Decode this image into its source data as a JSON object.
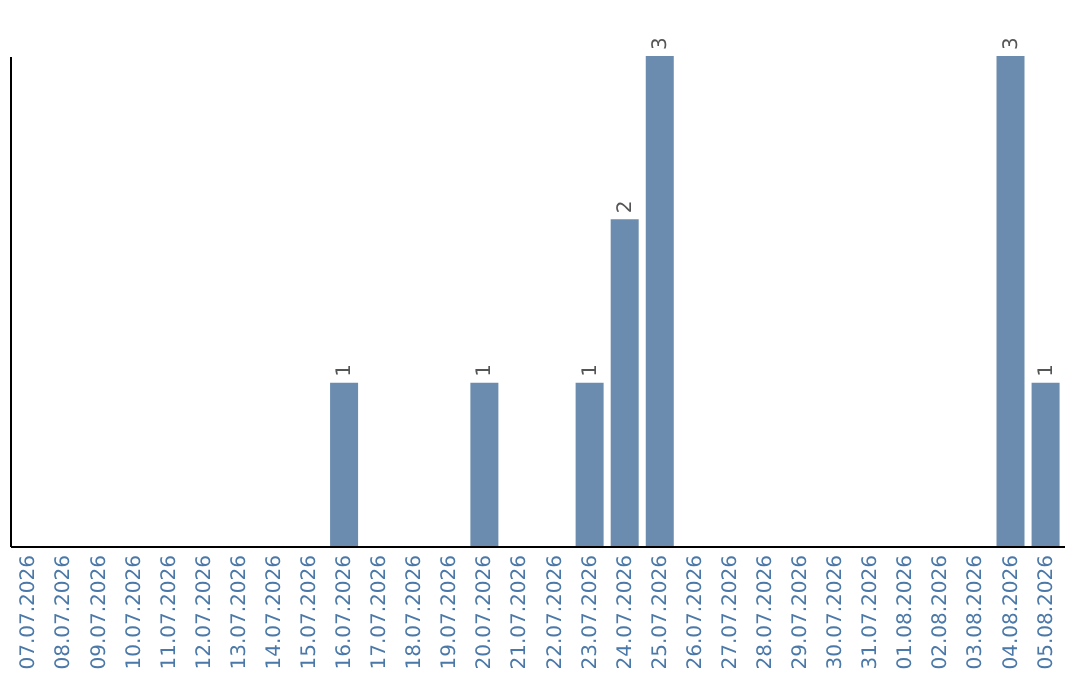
{
  "chart_data": {
    "type": "bar",
    "categories": [
      "07.07.2026",
      "08.07.2026",
      "09.07.2026",
      "10.07.2026",
      "11.07.2026",
      "12.07.2026",
      "13.07.2026",
      "14.07.2026",
      "15.07.2026",
      "16.07.2026",
      "17.07.2026",
      "18.07.2026",
      "19.07.2026",
      "20.07.2026",
      "21.07.2026",
      "22.07.2026",
      "23.07.2026",
      "24.07.2026",
      "25.07.2026",
      "26.07.2026",
      "27.07.2026",
      "28.07.2026",
      "29.07.2026",
      "30.07.2026",
      "31.07.2026",
      "01.08.2026",
      "02.08.2026",
      "03.08.2026",
      "04.08.2026",
      "05.08.2026"
    ],
    "values": [
      0,
      0,
      0,
      0,
      0,
      0,
      0,
      0,
      0,
      1,
      0,
      0,
      0,
      1,
      0,
      0,
      1,
      2,
      3,
      0,
      0,
      0,
      0,
      0,
      0,
      0,
      0,
      0,
      3,
      1
    ],
    "value_labels": [
      null,
      null,
      null,
      null,
      null,
      null,
      null,
      null,
      null,
      "1",
      null,
      null,
      null,
      "1",
      null,
      null,
      "1",
      "2",
      "3",
      null,
      null,
      null,
      null,
      null,
      null,
      null,
      null,
      null,
      "3",
      "1"
    ],
    "color": "#6b8cae",
    "ylim": [
      0,
      3
    ],
    "tick_labels": "x",
    "grid": false
  }
}
